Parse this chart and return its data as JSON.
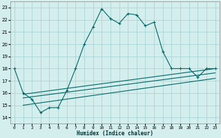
{
  "xlabel": "Humidex (Indice chaleur)",
  "bg_color": "#d4eeee",
  "grid_color": "#aad4d4",
  "line_color": "#006666",
  "xlim": [
    -0.5,
    23.5
  ],
  "ylim": [
    13.5,
    23.5
  ],
  "xticks": [
    0,
    1,
    2,
    3,
    4,
    5,
    6,
    7,
    8,
    9,
    10,
    11,
    12,
    13,
    14,
    15,
    16,
    17,
    18,
    19,
    20,
    21,
    22,
    23
  ],
  "yticks": [
    14,
    15,
    16,
    17,
    18,
    19,
    20,
    21,
    22,
    23
  ],
  "curve1_x": [
    0,
    1,
    2,
    3,
    4,
    5,
    6,
    7,
    8,
    9,
    10,
    11,
    12,
    13,
    14,
    15,
    16,
    17,
    18,
    19,
    20,
    21,
    22,
    23
  ],
  "curve1_y": [
    18.0,
    16.0,
    15.5,
    14.4,
    14.8,
    14.8,
    16.2,
    18.0,
    20.0,
    21.4,
    22.9,
    22.1,
    21.7,
    22.5,
    22.4,
    21.5,
    21.8,
    19.4,
    18.0,
    18.0,
    18.0,
    17.3,
    18.0,
    18.0
  ],
  "line2_x": [
    1,
    23
  ],
  "line2_y": [
    15.9,
    18.0
  ],
  "line3_x": [
    1,
    23
  ],
  "line3_y": [
    15.6,
    17.65
  ],
  "line4_x": [
    1,
    23
  ],
  "line4_y": [
    15.0,
    17.2
  ]
}
